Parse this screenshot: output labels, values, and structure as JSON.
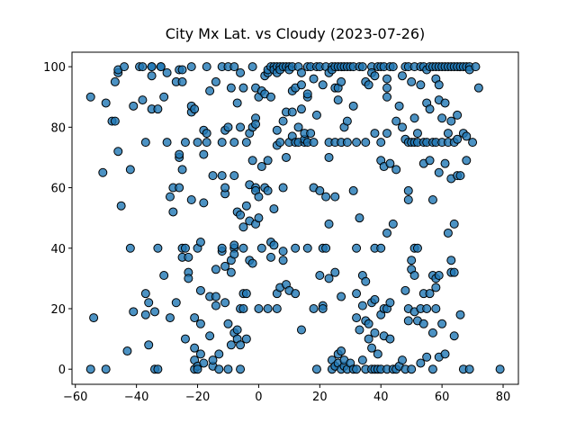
{
  "chart_data": {
    "type": "scatter",
    "title": "City Mx Lat. vs Cloudy (2023-07-26)",
    "color": "#1f77b4",
    "edgecolor": "#000000",
    "xlim": [
      -61.1,
      85.0
    ],
    "ylim": [
      -5.0,
      104.8
    ],
    "xticks": [
      {
        "value": -60,
        "label": "−60"
      },
      {
        "value": -40,
        "label": "−40"
      },
      {
        "value": -20,
        "label": "−20"
      },
      0,
      20,
      40,
      60,
      80
    ],
    "yticks": [
      0,
      20,
      40,
      60,
      80,
      100
    ],
    "grid": false,
    "x": [
      -55,
      -54,
      -55,
      -51,
      -50,
      -50,
      -48,
      -47,
      -47,
      -46,
      -46,
      -46,
      -45,
      -44,
      -43,
      -42,
      -42,
      -41,
      -41,
      -39,
      -38,
      -38,
      -37,
      -37,
      -37,
      -36,
      -36,
      -35,
      -35,
      -35,
      -35,
      -34,
      -34,
      -33,
      -33,
      -33,
      -32,
      -32,
      -31,
      -31,
      -30,
      -30,
      -29,
      -29,
      -28,
      -28,
      -27,
      -27,
      -26,
      -26,
      -26,
      -26,
      -25,
      -25,
      -25,
      -25,
      -25,
      -24,
      -24,
      -24,
      -23,
      -23,
      -23,
      -22,
      -22,
      -22,
      -22,
      -21,
      -21,
      -21,
      -21,
      -21,
      -20,
      -20,
      -20,
      -20,
      -19,
      -19,
      -19,
      -19,
      -18,
      -18,
      -18,
      -18,
      -17,
      -17,
      -17,
      -16,
      -16,
      -16,
      -15,
      -15,
      -15,
      -14,
      -14,
      -14,
      -14,
      -13,
      -13,
      -12,
      -12,
      -12,
      -12,
      -12,
      -11,
      -11,
      -11,
      -11,
      -11,
      -10,
      -10,
      -10,
      -10,
      -9,
      -9,
      -9,
      -9,
      -8,
      -8,
      -8,
      -8,
      -8,
      -8,
      -8,
      -7,
      -7,
      -7,
      -7,
      -6,
      -6,
      -6,
      -6,
      -6,
      -6,
      -5,
      -5,
      -5,
      -5,
      -5,
      -4,
      -4,
      -4,
      -4,
      -3,
      -3,
      -3,
      -3,
      -2,
      -2,
      -2,
      -2,
      -1,
      -1,
      -1,
      -1,
      -1,
      -1,
      0,
      0,
      0,
      0,
      1,
      1,
      1,
      2,
      2,
      2,
      3,
      3,
      3,
      3,
      3,
      4,
      4,
      4,
      4,
      5,
      5,
      5,
      5,
      6,
      6,
      6,
      6,
      6,
      6,
      7,
      7,
      7,
      7,
      8,
      8,
      8,
      8,
      8,
      9,
      9,
      9,
      9,
      10,
      10,
      10,
      10,
      11,
      11,
      11,
      11,
      12,
      12,
      12,
      12,
      13,
      13,
      13,
      14,
      14,
      14,
      14,
      15,
      15,
      15,
      16,
      16,
      16,
      16,
      16,
      17,
      17,
      18,
      18,
      18,
      18,
      19,
      19,
      19,
      20,
      20,
      20,
      21,
      21,
      21,
      21,
      22,
      22,
      22,
      23,
      23,
      23,
      23,
      23,
      24,
      24,
      24,
      24,
      25,
      25,
      25,
      25,
      25,
      25,
      26,
      26,
      26,
      26,
      26,
      27,
      27,
      27,
      27,
      27,
      27,
      28,
      28,
      28,
      28,
      29,
      29,
      29,
      29,
      30,
      30,
      31,
      31,
      31,
      31,
      32,
      32,
      32,
      32,
      32,
      33,
      33,
      33,
      34,
      34,
      34,
      34,
      35,
      35,
      35,
      35,
      35,
      36,
      36,
      36,
      37,
      37,
      37,
      37,
      37,
      38,
      38,
      38,
      38,
      38,
      38,
      39,
      39,
      39,
      40,
      40,
      40,
      40,
      40,
      40,
      41,
      41,
      41,
      41,
      42,
      42,
      42,
      42,
      42,
      42,
      42,
      43,
      43,
      43,
      43,
      44,
      44,
      44,
      45,
      45,
      45,
      46,
      46,
      47,
      47,
      47,
      48,
      48,
      48,
      48,
      49,
      49,
      49,
      49,
      49,
      49,
      50,
      50,
      50,
      50,
      50,
      51,
      51,
      51,
      51,
      51,
      51,
      52,
      52,
      52,
      52,
      53,
      53,
      53,
      53,
      54,
      54,
      54,
      54,
      54,
      55,
      55,
      55,
      55,
      55,
      56,
      56,
      56,
      56,
      57,
      57,
      57,
      57,
      57,
      57,
      58,
      58,
      58,
      58,
      58,
      58,
      59,
      59,
      59,
      59,
      59,
      59,
      60,
      60,
      60,
      60,
      61,
      61,
      61,
      61,
      62,
      62,
      62,
      62,
      63,
      63,
      63,
      63,
      63,
      64,
      64,
      64,
      64,
      64,
      65,
      65,
      65,
      65,
      66,
      66,
      66,
      67,
      67,
      67,
      68,
      68,
      68,
      69,
      69,
      69,
      70,
      71,
      72,
      79
    ],
    "values": [
      90,
      17,
      0,
      65,
      88,
      0,
      82,
      82,
      95,
      72,
      98,
      99,
      54,
      100,
      6,
      66,
      40,
      87,
      19,
      100,
      100,
      89,
      75,
      25,
      18,
      22,
      8,
      100,
      100,
      86,
      97,
      0,
      19,
      40,
      0,
      86,
      100,
      100,
      90,
      31,
      98,
      75,
      57,
      17,
      52,
      60,
      95,
      22,
      99,
      70,
      71,
      60,
      99,
      40,
      37,
      95,
      66,
      75,
      40,
      10,
      32,
      30,
      37,
      56,
      85,
      87,
      100,
      86,
      17,
      7,
      0,
      3,
      75,
      40,
      1,
      0,
      42,
      26,
      5,
      15,
      55,
      79,
      71,
      2,
      100,
      75,
      78,
      92,
      24,
      11,
      64,
      1,
      3,
      33,
      95,
      24,
      21,
      5,
      0,
      39,
      40,
      64,
      100,
      75,
      34,
      58,
      60,
      22,
      79,
      80,
      100,
      15,
      0,
      93,
      32,
      8,
      36,
      100,
      75,
      40,
      41,
      64,
      38,
      12,
      88,
      52,
      13,
      10,
      98,
      80,
      51,
      20,
      8,
      0,
      93,
      25,
      47,
      40,
      20,
      54,
      25,
      75,
      10,
      61,
      78,
      49,
      36,
      100,
      80,
      69,
      35,
      93,
      83,
      81,
      60,
      59,
      48,
      90,
      50,
      20,
      57,
      40,
      67,
      92,
      97,
      91,
      60,
      98,
      99,
      69,
      59,
      20,
      100,
      90,
      42,
      37,
      100,
      99,
      53,
      41,
      100,
      98,
      79,
      74,
      25,
      20,
      100,
      99,
      75,
      27,
      100,
      82,
      60,
      39,
      36,
      100,
      85,
      70,
      28,
      100,
      99,
      75,
      26,
      100,
      85,
      77,
      92,
      93,
      75,
      40,
      25,
      100,
      80,
      75,
      98,
      94,
      86,
      13,
      75,
      76,
      78,
      100,
      90,
      91,
      75,
      40,
      100,
      78,
      96,
      75,
      60,
      20,
      100,
      84,
      0,
      100,
      59,
      31,
      94,
      40,
      21,
      20,
      100,
      57,
      40,
      98,
      75,
      70,
      30,
      48,
      100,
      99,
      0,
      3,
      100,
      93,
      75,
      32,
      57,
      1,
      100,
      93,
      89,
      5,
      2,
      100,
      95,
      75,
      0,
      6,
      24,
      100,
      80,
      1,
      3,
      100,
      82,
      75,
      0,
      100,
      2,
      100,
      87,
      59,
      0,
      75,
      40,
      25,
      17,
      0,
      100,
      50,
      13,
      100,
      31,
      21,
      3,
      95,
      75,
      29,
      16,
      0,
      94,
      10,
      15,
      100,
      98,
      22,
      7,
      0,
      97,
      78,
      40,
      23,
      12,
      0,
      100,
      0,
      5,
      100,
      75,
      69,
      40,
      18,
      0,
      100,
      67,
      20,
      11,
      96,
      93,
      90,
      78,
      45,
      20,
      0,
      100,
      68,
      22,
      10,
      100,
      48,
      0,
      82,
      66,
      0,
      87,
      1,
      97,
      80,
      3,
      100,
      76,
      26,
      0,
      100,
      75,
      59,
      56,
      20,
      16,
      95,
      75,
      36,
      33,
      0,
      100,
      83,
      75,
      40,
      31,
      19,
      78,
      75,
      40,
      16,
      100,
      94,
      20,
      2,
      100,
      75,
      68,
      25,
      15,
      99,
      88,
      75,
      20,
      4,
      100,
      86,
      69,
      25,
      100,
      75,
      56,
      31,
      12,
      0,
      100,
      96,
      75,
      30,
      27,
      20,
      100,
      94,
      89,
      65,
      31,
      4,
      100,
      83,
      75,
      15,
      100,
      88,
      68,
      5,
      100,
      78,
      75,
      45,
      100,
      82,
      63,
      36,
      32,
      100,
      75,
      48,
      32,
      11,
      100,
      84,
      76,
      64,
      100,
      64,
      18,
      100,
      78,
      0,
      100,
      77,
      69,
      100,
      99,
      0,
      75,
      100,
      93,
      0
    ]
  }
}
